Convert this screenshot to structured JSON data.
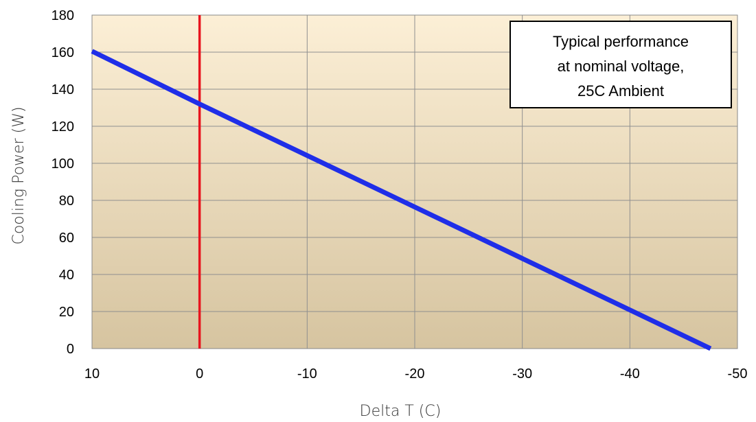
{
  "chart_data": {
    "type": "line",
    "title": "",
    "xlabel": "Delta T (C)",
    "ylabel": "Cooling Power (W)",
    "xlim": [
      10,
      -50
    ],
    "ylim": [
      0,
      180
    ],
    "x_ticks": [
      10,
      0,
      -10,
      -20,
      -30,
      -40,
      -50
    ],
    "x_tick_labels": [
      "10",
      "0",
      "-10",
      "-20",
      "-30",
      "-40",
      "-50"
    ],
    "y_ticks": [
      0,
      20,
      40,
      60,
      80,
      100,
      120,
      140,
      160,
      180
    ],
    "y_tick_labels": [
      "0",
      "20",
      "40",
      "60",
      "80",
      "100",
      "120",
      "140",
      "160",
      "180"
    ],
    "grid": true,
    "series": [
      {
        "x": [
          10,
          0,
          -47.5
        ],
        "y": [
          160.5,
          132,
          0
        ],
        "color": "#1f2ee8"
      }
    ],
    "reference_line": {
      "x": 0,
      "color": "#e8141e"
    },
    "annotation": {
      "lines": [
        "Typical performance",
        "at nominal voltage,",
        "25C Ambient"
      ],
      "placement": "top-right"
    },
    "background_gradient": [
      "#fcefd6",
      "#d6c4a0"
    ]
  }
}
